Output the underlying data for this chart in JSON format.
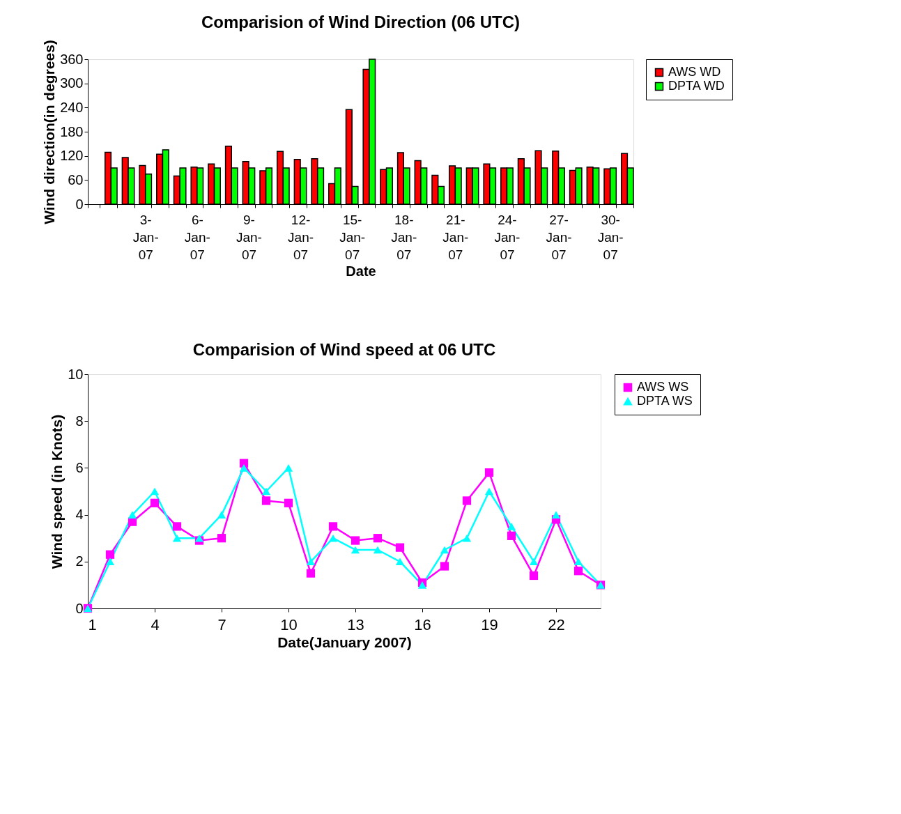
{
  "chart_data": [
    {
      "type": "bar",
      "title": "Comparision of Wind Direction (06 UTC)",
      "xlabel": "Date",
      "ylabel": "Wind direction(in degrees)",
      "categories": [
        null,
        null,
        null,
        "3-Jan-07",
        null,
        null,
        "6-Jan-07",
        null,
        null,
        "9-Jan-07",
        null,
        null,
        "12-Jan-07",
        null,
        null,
        "15-Jan-07",
        null,
        null,
        "18-Jan-07",
        null,
        null,
        "21-Jan-07",
        null,
        null,
        "24-Jan-07",
        null,
        null,
        "27-Jan-07",
        null,
        null,
        "30-Jan-07",
        null
      ],
      "series": [
        {
          "name": "AWS WD",
          "color": "#ff0000",
          "values": [
            null,
            129,
            116,
            96,
            124,
            70,
            92,
            100,
            144,
            106,
            83,
            131,
            111,
            113,
            51,
            235,
            335,
            86,
            128,
            108,
            72,
            95,
            90,
            100,
            90,
            113,
            133,
            132,
            84,
            92,
            88,
            126
          ]
        },
        {
          "name": "DPTA WD",
          "color": "#00ff00",
          "values": [
            null,
            90,
            90,
            75,
            135,
            90,
            90,
            90,
            90,
            90,
            90,
            90,
            90,
            90,
            90,
            44,
            360,
            90,
            90,
            90,
            44,
            90,
            90,
            90,
            90,
            90,
            90,
            90,
            90,
            90,
            90,
            90
          ]
        }
      ],
      "ylim": [
        0,
        360
      ],
      "yticks": [
        0,
        60,
        120,
        180,
        240,
        300,
        360
      ],
      "grid": false,
      "legend": "right"
    },
    {
      "type": "line",
      "title": "Comparision of Wind speed at 06 UTC",
      "xlabel": "Date(January 2007)",
      "ylabel": "Wind speed (in Knots)",
      "x": [
        1,
        2,
        3,
        4,
        5,
        6,
        7,
        8,
        9,
        10,
        11,
        12,
        13,
        14,
        15,
        16,
        17,
        18,
        19,
        20,
        21,
        22,
        23,
        24
      ],
      "series": [
        {
          "name": "AWS WS",
          "color": "#ff00ff",
          "marker": "square",
          "values": [
            0,
            2.3,
            3.7,
            4.5,
            3.5,
            2.9,
            3.0,
            6.2,
            4.6,
            4.5,
            1.5,
            3.5,
            2.9,
            3.0,
            2.6,
            1.1,
            1.8,
            4.6,
            5.8,
            3.1,
            1.4,
            3.8,
            1.6,
            1.0
          ]
        },
        {
          "name": "DPTA WS",
          "color": "#00ffff",
          "marker": "triangle",
          "values": [
            0,
            2,
            4,
            5,
            3,
            3,
            4,
            6,
            5,
            6,
            2,
            3,
            2.5,
            2.5,
            2,
            1,
            2.5,
            3,
            5,
            3.5,
            2,
            4,
            2,
            1
          ]
        }
      ],
      "xlim": [
        1,
        24
      ],
      "xticks": [
        1,
        4,
        7,
        10,
        13,
        16,
        19,
        22
      ],
      "ylim": [
        0,
        10
      ],
      "yticks": [
        0,
        2,
        4,
        6,
        8,
        10
      ],
      "grid": false,
      "legend": "right",
      "line_style": "solid"
    }
  ]
}
